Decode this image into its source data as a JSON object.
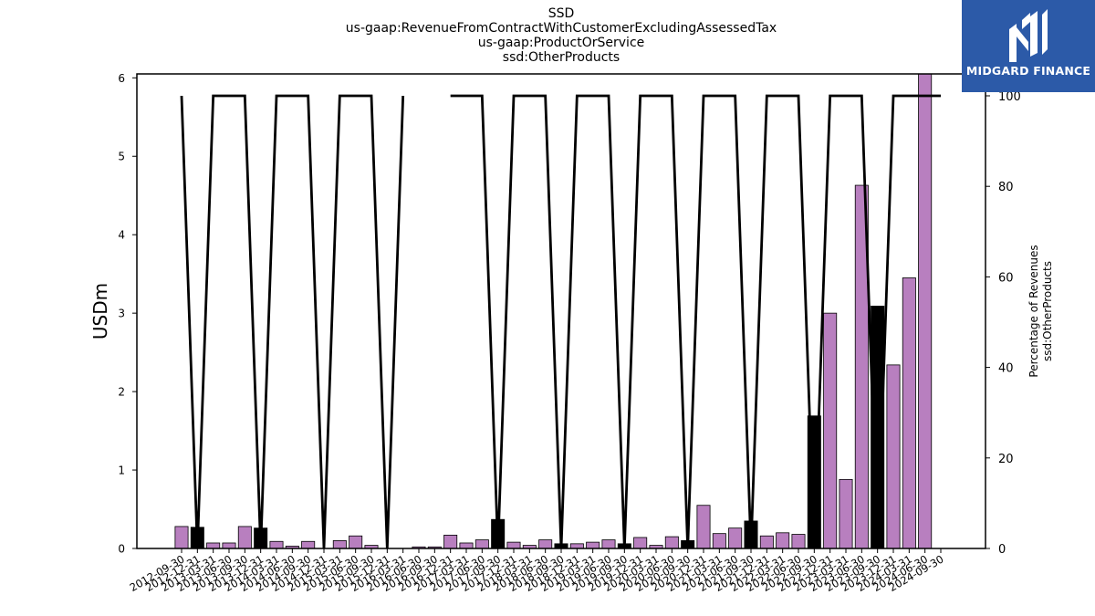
{
  "titles": [
    "SSD",
    "us-gaap:RevenueFromContractWithCustomerExcludingAssessedTax",
    "us-gaap:ProductOrService",
    "ssd:OtherProducts"
  ],
  "logo": {
    "text": "MIDGARD FINANCE",
    "color": "#2c5aa8"
  },
  "chart_data": {
    "type": "bar",
    "ylabel": "USDm",
    "y2label_lines": [
      "Percentage of Revenues",
      "ssd:OtherProducts"
    ],
    "ylim": [
      0,
      6.05
    ],
    "y2lim": [
      0,
      100
    ],
    "yticks": [
      0,
      1,
      2,
      3,
      4,
      5,
      6
    ],
    "y2ticks": [
      0,
      20,
      40,
      60,
      80,
      100
    ],
    "grid": false,
    "colors": {
      "purple": "#b87fbf",
      "black": "#000000"
    },
    "categories": [
      "2012-09-30",
      "2012-12-31",
      "2013-03-31",
      "2013-06-30",
      "2013-09-30",
      "2013-12-31",
      "2014-03-31",
      "2014-06-30",
      "2014-09-30",
      "2014-12-31",
      "2015-03-31",
      "2015-06-30",
      "2015-09-30",
      "2015-12-31",
      "2016-03-31",
      "2016-06-30",
      "2016-09-30",
      "2016-12-31",
      "2017-03-31",
      "2017-06-30",
      "2017-09-30",
      "2017-12-31",
      "2018-03-31",
      "2018-06-30",
      "2018-09-30",
      "2018-12-31",
      "2019-03-31",
      "2019-06-30",
      "2019-09-30",
      "2019-12-31",
      "2020-03-31",
      "2020-06-30",
      "2020-09-30",
      "2020-12-31",
      "2021-03-31",
      "2021-06-30",
      "2021-09-30",
      "2021-12-31",
      "2022-03-31",
      "2022-06-30",
      "2022-09-30",
      "2022-12-31",
      "2023-03-31",
      "2023-06-30",
      "2023-09-30",
      "2023-12-31",
      "2024-03-31",
      "2024-06-30",
      "2024-09-30"
    ],
    "values": [
      0.28,
      0.27,
      0.07,
      0.07,
      0.28,
      0.26,
      0.09,
      0.03,
      0.09,
      0.0,
      0.1,
      0.16,
      0.04,
      0.0,
      0.0,
      0.02,
      0.02,
      0.17,
      0.07,
      0.11,
      0.37,
      0.08,
      0.04,
      0.11,
      0.06,
      0.06,
      0.08,
      0.11,
      0.06,
      0.14,
      0.04,
      0.15,
      0.1,
      0.55,
      0.19,
      0.26,
      0.35,
      0.16,
      0.2,
      0.18,
      1.69,
      3.0,
      0.88,
      4.63,
      3.09,
      2.34,
      3.45,
      6.05,
      0.0
    ],
    "bar_colors": [
      "purple",
      "black",
      "purple",
      "purple",
      "purple",
      "black",
      "purple",
      "purple",
      "purple",
      "black",
      "purple",
      "purple",
      "purple",
      "black",
      "purple",
      "purple",
      "purple",
      "purple",
      "purple",
      "purple",
      "black",
      "purple",
      "purple",
      "purple",
      "black",
      "purple",
      "purple",
      "purple",
      "black",
      "purple",
      "purple",
      "purple",
      "black",
      "purple",
      "purple",
      "purple",
      "black",
      "purple",
      "purple",
      "purple",
      "black",
      "purple",
      "purple",
      "purple",
      "black",
      "purple",
      "purple",
      "purple",
      "black"
    ],
    "percent_series": [
      100,
      0,
      100,
      100,
      100,
      0,
      100,
      100,
      100,
      0,
      100,
      100,
      100,
      0,
      100,
      null,
      null,
      100,
      100,
      100,
      0,
      100,
      100,
      100,
      0,
      100,
      100,
      100,
      0,
      100,
      100,
      100,
      0,
      100,
      100,
      100,
      0,
      100,
      100,
      100,
      0,
      100,
      100,
      100,
      0,
      100,
      100,
      100,
      100
    ]
  }
}
